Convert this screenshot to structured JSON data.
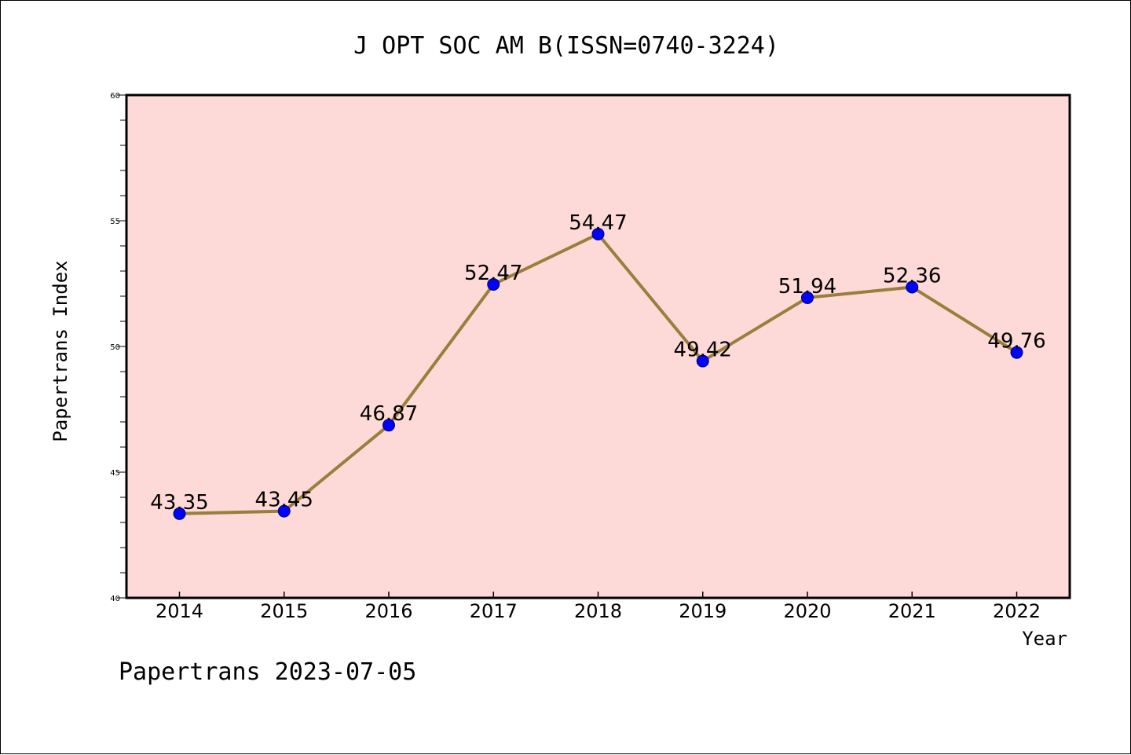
{
  "chart_data": {
    "type": "line",
    "title": "J OPT SOC AM B(ISSN=0740-3224)",
    "xlabel": "Year",
    "ylabel": "Papertrans Index",
    "x": [
      "2014",
      "2015",
      "2016",
      "2017",
      "2018",
      "2019",
      "2020",
      "2021",
      "2022"
    ],
    "series": [
      {
        "values": [
          43.35,
          43.45,
          46.87,
          52.47,
          54.47,
          49.42,
          51.94,
          52.36,
          49.76
        ],
        "labels": [
          "43.35",
          "43.45",
          "46.87",
          "52.47",
          "54.47",
          "49.42",
          "51.94",
          "52.36",
          "49.76"
        ]
      }
    ],
    "ylim": [
      40,
      60
    ],
    "yticks": [
      "40",
      "45",
      "50",
      "55",
      "60"
    ],
    "grid": false,
    "plot_background": "#fddad7",
    "line_color": "#9a7f3c",
    "marker_color": "#0000ff"
  },
  "footer": "Papertrans 2023-07-05"
}
